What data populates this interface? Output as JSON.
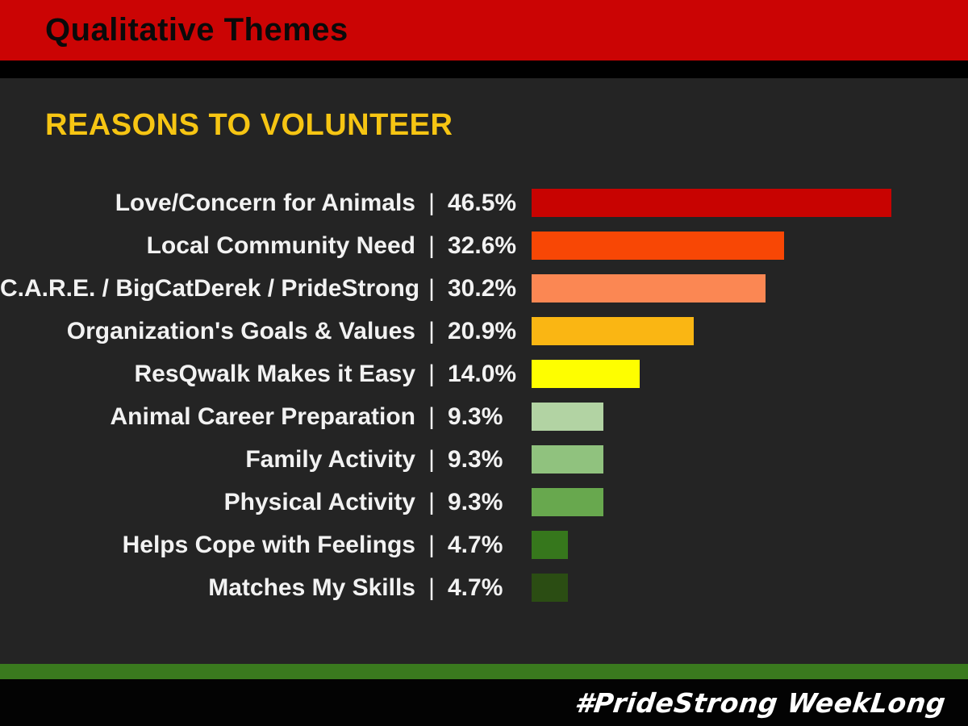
{
  "banner": {
    "title": "Qualitative Themes",
    "background": "#cb0404",
    "text_color": "#0a0a0a"
  },
  "section": {
    "heading": "REASONS TO VOLUNTEER",
    "heading_color": "#f6c513",
    "background": "#242424"
  },
  "footer": {
    "hashtag": "#PrideStrong WeekLong",
    "stripe_color": "#3a7a1e",
    "background": "#030303",
    "text_color": "#ffffff"
  },
  "chart_data": {
    "type": "bar",
    "orientation": "horizontal",
    "title": "REASONS TO VOLUNTEER",
    "categories": [
      "Love/Concern for Animals",
      "Local Community Need",
      "C.A.R.E. / BigCatDerek / PrideStrong",
      "Organization's Goals & Values",
      "ResQwalk Makes it Easy",
      "Animal Career Preparation",
      "Family Activity",
      "Physical Activity",
      "Helps Cope with Feelings",
      "Matches My Skills"
    ],
    "values": [
      46.5,
      32.6,
      30.2,
      20.9,
      14.0,
      9.3,
      9.3,
      9.3,
      4.7,
      4.7
    ],
    "value_labels": [
      "46.5%",
      "32.6%",
      "30.2%",
      "20.9%",
      "14.0%",
      "9.3%",
      "9.3%",
      "9.3%",
      "4.7%",
      "4.7%"
    ],
    "separator": "|",
    "bar_colors": [
      "#c80301",
      "#f84705",
      "#fb8753",
      "#fab613",
      "#fefe00",
      "#b2d3a3",
      "#90c27e",
      "#68a84e",
      "#36771c",
      "#2b4d13"
    ],
    "xlim": [
      0,
      50
    ],
    "grid": false,
    "legend": "none",
    "axes_visible": false,
    "value_label_position": "left-of-bar"
  }
}
